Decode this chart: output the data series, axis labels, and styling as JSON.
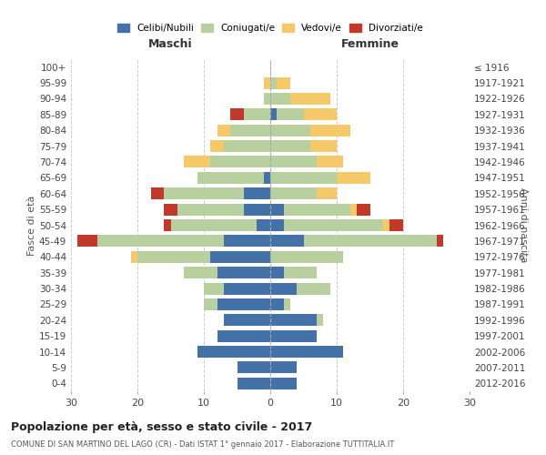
{
  "age_groups": [
    "0-4",
    "5-9",
    "10-14",
    "15-19",
    "20-24",
    "25-29",
    "30-34",
    "35-39",
    "40-44",
    "45-49",
    "50-54",
    "55-59",
    "60-64",
    "65-69",
    "70-74",
    "75-79",
    "80-84",
    "85-89",
    "90-94",
    "95-99",
    "100+"
  ],
  "birth_years": [
    "2012-2016",
    "2007-2011",
    "2002-2006",
    "1997-2001",
    "1992-1996",
    "1987-1991",
    "1982-1986",
    "1977-1981",
    "1972-1976",
    "1967-1971",
    "1962-1966",
    "1957-1961",
    "1952-1956",
    "1947-1951",
    "1942-1946",
    "1937-1941",
    "1932-1936",
    "1927-1931",
    "1922-1926",
    "1917-1921",
    "≤ 1916"
  ],
  "male": {
    "celibi": [
      5,
      5,
      11,
      8,
      7,
      8,
      7,
      8,
      9,
      7,
      2,
      4,
      4,
      1,
      0,
      0,
      0,
      0,
      0,
      0,
      0
    ],
    "coniugati": [
      0,
      0,
      0,
      0,
      0,
      2,
      3,
      5,
      11,
      19,
      13,
      10,
      12,
      10,
      9,
      7,
      6,
      4,
      1,
      0,
      0
    ],
    "vedovi": [
      0,
      0,
      0,
      0,
      0,
      0,
      0,
      0,
      1,
      0,
      0,
      0,
      0,
      0,
      4,
      2,
      2,
      0,
      0,
      1,
      0
    ],
    "divorziati": [
      0,
      0,
      0,
      0,
      0,
      0,
      0,
      0,
      0,
      3,
      1,
      2,
      2,
      0,
      0,
      0,
      0,
      2,
      0,
      0,
      0
    ]
  },
  "female": {
    "nubili": [
      4,
      4,
      11,
      7,
      7,
      2,
      4,
      2,
      0,
      5,
      2,
      2,
      0,
      0,
      0,
      0,
      0,
      1,
      0,
      0,
      0
    ],
    "coniugate": [
      0,
      0,
      0,
      0,
      1,
      1,
      5,
      5,
      11,
      20,
      15,
      10,
      7,
      10,
      7,
      6,
      6,
      4,
      3,
      1,
      0
    ],
    "vedove": [
      0,
      0,
      0,
      0,
      0,
      0,
      0,
      0,
      0,
      0,
      1,
      1,
      3,
      5,
      4,
      4,
      6,
      5,
      6,
      2,
      0
    ],
    "divorziate": [
      0,
      0,
      0,
      0,
      0,
      0,
      0,
      0,
      0,
      1,
      2,
      2,
      0,
      0,
      0,
      0,
      0,
      0,
      0,
      0,
      0
    ]
  },
  "colors": {
    "celibi": "#4472a8",
    "coniugati": "#b8cfa0",
    "vedovi": "#f5c96a",
    "divorziati": "#c0392b"
  },
  "xlim": 30,
  "title": "Popolazione per età, sesso e stato civile - 2017",
  "subtitle": "COMUNE DI SAN MARTINO DEL LAGO (CR) - Dati ISTAT 1° gennaio 2017 - Elaborazione TUTTITALIA.IT",
  "ylabel_left": "Fasce di età",
  "ylabel_right": "Anni di nascita",
  "col_maschi": "Maschi",
  "col_femmine": "Femmine",
  "legend_labels": [
    "Celibi/Nubili",
    "Coniugati/e",
    "Vedovi/e",
    "Divorziati/e"
  ],
  "bg_color": "#ffffff",
  "grid_color": "#cccccc"
}
